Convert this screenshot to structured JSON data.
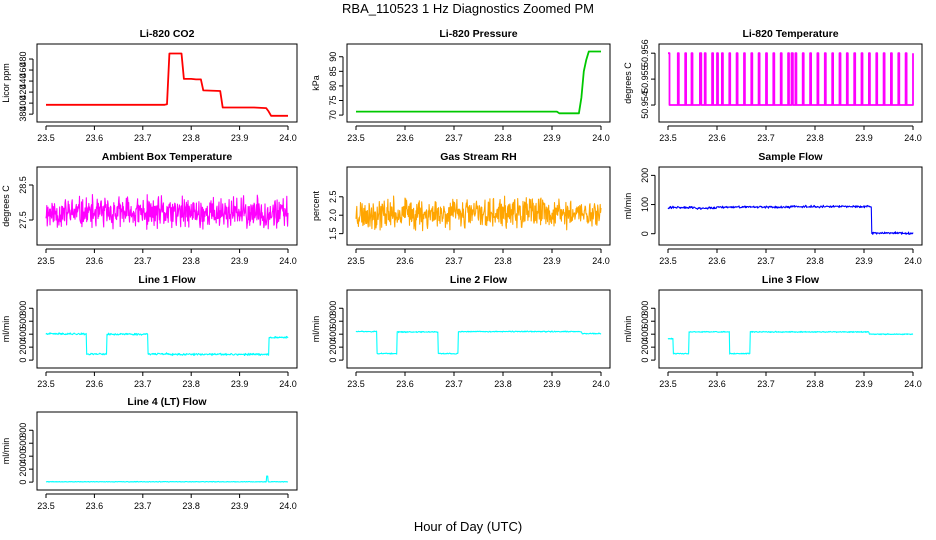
{
  "figure": {
    "title": "RBA_110523  1 Hz Diagnostics Zoomed PM",
    "xlabel": "Hour of Day (UTC)"
  },
  "chart_data": [
    {
      "type": "line",
      "title": "Li-820 CO2",
      "ylabel": "Licor ppm",
      "color": "#ff0000",
      "xlim": [
        23.5,
        24.0
      ],
      "ylim": [
        373,
        500
      ],
      "xticks": [
        "23.5",
        "23.6",
        "23.7",
        "23.8",
        "23.9",
        "24.0"
      ],
      "yticks": [
        {
          "value": 380,
          "label": "380"
        },
        {
          "value": 400,
          "label": "400"
        },
        {
          "value": 420,
          "label": "420"
        },
        {
          "value": 440,
          "label": "440"
        },
        {
          "value": 460,
          "label": "460"
        },
        {
          "value": 480,
          "label": "480"
        }
      ],
      "x": [
        23.5,
        23.745,
        23.75,
        23.755,
        23.78,
        23.785,
        23.8,
        23.81,
        23.82,
        23.825,
        23.86,
        23.865,
        23.93,
        23.955,
        23.96,
        23.965,
        24.0
      ],
      "y": [
        397,
        397,
        398,
        490,
        490,
        444,
        444,
        443,
        443,
        423,
        422,
        392,
        392,
        391,
        385,
        377,
        377
      ]
    },
    {
      "type": "line",
      "title": "Li-820 Pressure",
      "ylabel": "kPa",
      "color": "#00c800",
      "xlim": [
        23.5,
        24.0
      ],
      "ylim": [
        69,
        93
      ],
      "xticks": [
        "23.5",
        "23.6",
        "23.7",
        "23.8",
        "23.9",
        "24.0"
      ],
      "yticks": [
        {
          "value": 70,
          "label": "70"
        },
        {
          "value": 75,
          "label": "75"
        },
        {
          "value": 80,
          "label": "80"
        },
        {
          "value": 85,
          "label": "85"
        },
        {
          "value": 90,
          "label": "90"
        }
      ],
      "x": [
        23.5,
        23.91,
        23.915,
        23.955,
        23.96,
        23.965,
        23.97,
        23.975,
        24.0
      ],
      "y": [
        71.2,
        71.2,
        70.6,
        70.6,
        76,
        85,
        89,
        91.8,
        91.8
      ]
    },
    {
      "type": "line",
      "title": "Li-820 Temperature",
      "ylabel": "degrees C",
      "color": "#ff00ff",
      "xlim": [
        23.5,
        24.0
      ],
      "ylim": [
        50.9535,
        50.9562
      ],
      "xticks": [
        "23.5",
        "23.6",
        "23.7",
        "23.8",
        "23.9",
        "24.0"
      ],
      "yticks": [
        {
          "value": 50.954,
          "label": "50.954"
        },
        {
          "value": 50.955,
          "label": "50.955"
        },
        {
          "value": 50.956,
          "label": "50.956"
        }
      ],
      "toggle": {
        "low": 50.954,
        "high": 50.956,
        "switches": [
          23.5,
          23.503,
          23.52,
          23.522,
          23.535,
          23.537,
          23.548,
          23.55,
          23.565,
          23.568,
          23.575,
          23.577,
          23.59,
          23.592,
          23.6,
          23.602,
          23.61,
          23.612,
          23.625,
          23.627,
          23.64,
          23.642,
          23.655,
          23.657,
          23.67,
          23.672,
          23.685,
          23.687,
          23.7,
          23.702,
          23.715,
          23.717,
          23.73,
          23.732,
          23.745,
          23.747,
          23.752,
          23.755,
          23.76,
          23.762,
          23.775,
          23.777,
          23.79,
          23.792,
          23.805,
          23.807,
          23.82,
          23.822,
          23.835,
          23.837,
          23.85,
          23.852,
          23.865,
          23.867,
          23.88,
          23.882,
          23.895,
          23.897,
          23.91,
          23.912,
          23.925,
          23.927,
          23.94,
          23.942,
          23.955,
          23.957,
          23.97,
          23.972,
          23.985,
          23.987,
          24.0
        ]
      }
    },
    {
      "type": "line",
      "title": "Ambient Box Temperature",
      "ylabel": "degrees C",
      "color": "#ff00ff",
      "xlim": [
        23.5,
        24.0
      ],
      "ylim": [
        26.9,
        28.9
      ],
      "xticks": [
        "23.5",
        "23.6",
        "23.7",
        "23.8",
        "23.9",
        "24.0"
      ],
      "yticks": [
        {
          "value": 27.5,
          "label": "27.5"
        },
        {
          "value": 28.5,
          "label": "28.5"
        }
      ],
      "noise": {
        "segments": [
          {
            "from": 23.5,
            "to": 24.0,
            "mean": 27.7
          }
        ],
        "amplitude": 0.55,
        "seed": 11,
        "n": 600
      }
    },
    {
      "type": "line",
      "title": "Gas Stream RH",
      "ylabel": "percent",
      "color": "#ffa500",
      "xlim": [
        23.5,
        24.0
      ],
      "ylim": [
        1.3,
        3.2
      ],
      "xticks": [
        "23.5",
        "23.6",
        "23.7",
        "23.8",
        "23.9",
        "24.0"
      ],
      "yticks": [
        {
          "value": 1.5,
          "label": "1.5"
        },
        {
          "value": 2.0,
          "label": "2.0"
        },
        {
          "value": 2.5,
          "label": "2.5"
        }
      ],
      "noise": {
        "segments": [
          {
            "from": 23.5,
            "to": 24.0,
            "mean": 2.05
          }
        ],
        "amplitude": 0.5,
        "seed": 23,
        "n": 600
      }
    },
    {
      "type": "line",
      "title": "Sample Flow",
      "ylabel": "ml/min",
      "color": "#0000ff",
      "xlim": [
        23.5,
        24.0
      ],
      "ylim": [
        -25,
        215
      ],
      "xticks": [
        "23.5",
        "23.6",
        "23.7",
        "23.8",
        "23.9",
        "24.0"
      ],
      "yticks": [
        {
          "value": 0,
          "label": "0"
        },
        {
          "value": 100,
          "label": "100"
        },
        {
          "value": 200,
          "label": "200"
        }
      ],
      "noise": {
        "segments": [
          {
            "from": 23.5,
            "to": 23.55,
            "mean": 90
          },
          {
            "from": 23.55,
            "to": 23.6,
            "mean": 88
          },
          {
            "from": 23.6,
            "to": 23.75,
            "mean": 91
          },
          {
            "from": 23.75,
            "to": 23.915,
            "mean": 93
          },
          {
            "from": 23.915,
            "to": 24.0,
            "mean": 2
          }
        ],
        "amplitude": 5,
        "seed": 31,
        "n": 500
      }
    },
    {
      "type": "line",
      "title": "Line 1 Flow",
      "ylabel": "ml/min",
      "color": "#00ffff",
      "xlim": [
        23.5,
        24.0
      ],
      "ylim": [
        -60,
        1020
      ],
      "xticks": [
        "23.5",
        "23.6",
        "23.7",
        "23.8",
        "23.9",
        "24.0"
      ],
      "yticks": [
        {
          "value": 0,
          "label": "0"
        },
        {
          "value": 200,
          "label": "200"
        },
        {
          "value": 400,
          "label": "400"
        },
        {
          "value": 600,
          "label": "600"
        },
        {
          "value": 800,
          "label": "800"
        }
      ],
      "noise": {
        "segments": [
          {
            "from": 23.5,
            "to": 23.583,
            "mean": 405
          },
          {
            "from": 23.583,
            "to": 23.625,
            "mean": 95
          },
          {
            "from": 23.625,
            "to": 23.71,
            "mean": 400
          },
          {
            "from": 23.71,
            "to": 23.75,
            "mean": 95
          },
          {
            "from": 23.75,
            "to": 23.96,
            "mean": 88
          },
          {
            "from": 23.96,
            "to": 24.0,
            "mean": 350
          }
        ],
        "amplitude": 18,
        "seed": 41,
        "n": 500
      }
    },
    {
      "type": "line",
      "title": "Line 2 Flow",
      "ylabel": "ml/min",
      "color": "#00ffff",
      "xlim": [
        23.5,
        24.0
      ],
      "ylim": [
        -60,
        1020
      ],
      "xticks": [
        "23.5",
        "23.6",
        "23.7",
        "23.8",
        "23.9",
        "24.0"
      ],
      "yticks": [
        {
          "value": 0,
          "label": "0"
        },
        {
          "value": 200,
          "label": "200"
        },
        {
          "value": 400,
          "label": "400"
        },
        {
          "value": 600,
          "label": "600"
        },
        {
          "value": 800,
          "label": "800"
        }
      ],
      "noise": {
        "segments": [
          {
            "from": 23.5,
            "to": 23.542,
            "mean": 440
          },
          {
            "from": 23.542,
            "to": 23.583,
            "mean": 100
          },
          {
            "from": 23.583,
            "to": 23.667,
            "mean": 435
          },
          {
            "from": 23.667,
            "to": 23.708,
            "mean": 100
          },
          {
            "from": 23.708,
            "to": 23.96,
            "mean": 440
          },
          {
            "from": 23.96,
            "to": 24.0,
            "mean": 410
          }
        ],
        "amplitude": 10,
        "seed": 51,
        "n": 500
      }
    },
    {
      "type": "line",
      "title": "Line 3 Flow",
      "ylabel": "ml/min",
      "color": "#00ffff",
      "xlim": [
        23.5,
        24.0
      ],
      "ylim": [
        -60,
        1020
      ],
      "xticks": [
        "23.5",
        "23.6",
        "23.7",
        "23.8",
        "23.9",
        "24.0"
      ],
      "yticks": [
        {
          "value": 0,
          "label": "0"
        },
        {
          "value": 200,
          "label": "200"
        },
        {
          "value": 400,
          "label": "400"
        },
        {
          "value": 600,
          "label": "600"
        },
        {
          "value": 800,
          "label": "800"
        }
      ],
      "noise": {
        "segments": [
          {
            "from": 23.5,
            "to": 23.51,
            "mean": 330
          },
          {
            "from": 23.51,
            "to": 23.542,
            "mean": 100
          },
          {
            "from": 23.542,
            "to": 23.625,
            "mean": 435
          },
          {
            "from": 23.625,
            "to": 23.667,
            "mean": 100
          },
          {
            "from": 23.667,
            "to": 23.91,
            "mean": 435
          },
          {
            "from": 23.91,
            "to": 24.0,
            "mean": 400
          }
        ],
        "amplitude": 10,
        "seed": 61,
        "n": 500
      }
    },
    {
      "type": "line",
      "title": "Line 4 (LT) Flow",
      "ylabel": "ml/min",
      "color": "#00ffff",
      "xlim": [
        23.5,
        24.0
      ],
      "ylim": [
        -60,
        1020
      ],
      "xticks": [
        "23.5",
        "23.6",
        "23.7",
        "23.8",
        "23.9",
        "24.0"
      ],
      "yticks": [
        {
          "value": 0,
          "label": "0"
        },
        {
          "value": 200,
          "label": "200"
        },
        {
          "value": 400,
          "label": "400"
        },
        {
          "value": 600,
          "label": "600"
        },
        {
          "value": 800,
          "label": "800"
        }
      ],
      "noise": {
        "segments": [
          {
            "from": 23.5,
            "to": 23.955,
            "mean": 5
          },
          {
            "from": 23.955,
            "to": 23.958,
            "mean": 90
          },
          {
            "from": 23.958,
            "to": 24.0,
            "mean": 5
          }
        ],
        "amplitude": 6,
        "seed": 71,
        "n": 500
      }
    }
  ]
}
